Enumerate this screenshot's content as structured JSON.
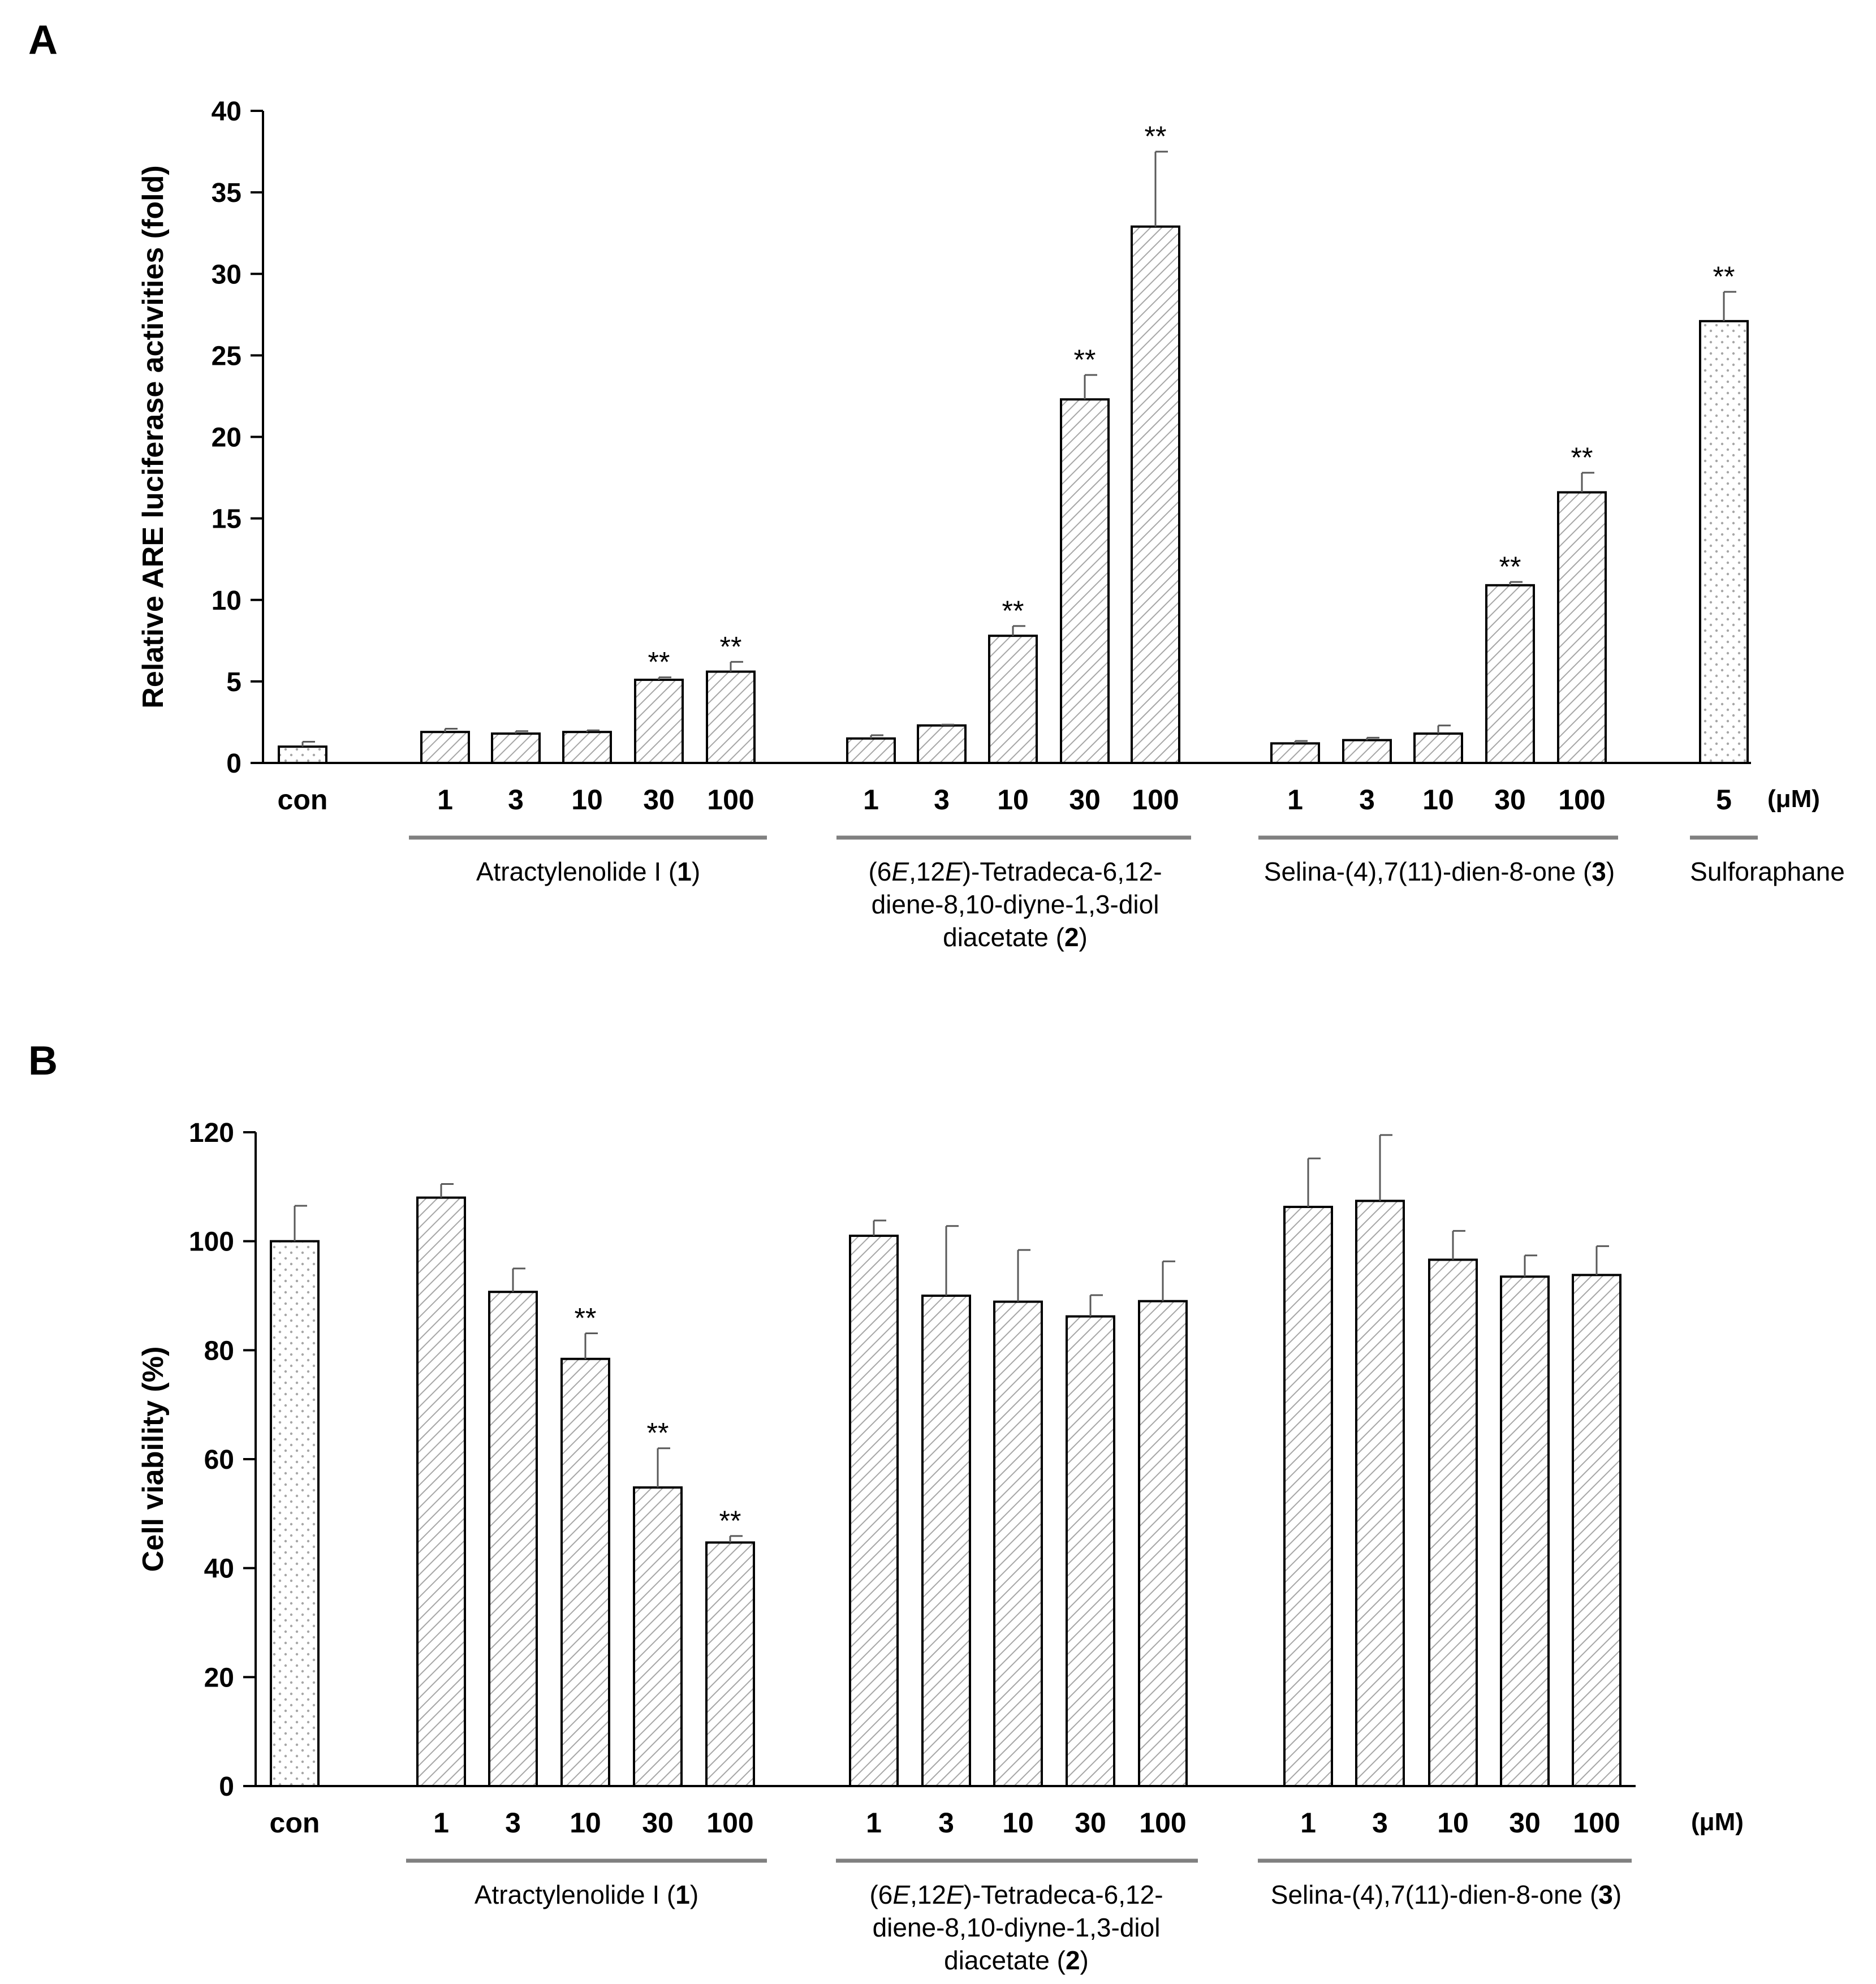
{
  "chart_data": [
    {
      "panel": "A",
      "type": "bar",
      "ylabel": "Relative ARE luciferase activities (fold)",
      "ylim": [
        0,
        40
      ],
      "yticks": [
        0,
        5,
        10,
        15,
        20,
        25,
        30,
        35,
        40
      ],
      "unit": "(μM)",
      "bars": [
        {
          "label": "con",
          "value": 1.0,
          "error": 0.3,
          "pattern": "dots",
          "sig": ""
        },
        {
          "label": "1",
          "value": 1.9,
          "error": 0.2,
          "pattern": "hatch",
          "sig": ""
        },
        {
          "label": "3",
          "value": 1.8,
          "error": 0.15,
          "pattern": "hatch",
          "sig": ""
        },
        {
          "label": "10",
          "value": 1.9,
          "error": 0.1,
          "pattern": "hatch",
          "sig": ""
        },
        {
          "label": "30",
          "value": 5.1,
          "error": 0.15,
          "pattern": "hatch",
          "sig": "**"
        },
        {
          "label": "100",
          "value": 5.6,
          "error": 0.6,
          "pattern": "hatch",
          "sig": "**"
        },
        {
          "label": "1",
          "value": 1.5,
          "error": 0.2,
          "pattern": "hatch",
          "sig": ""
        },
        {
          "label": "3",
          "value": 2.3,
          "error": 0.05,
          "pattern": "hatch",
          "sig": ""
        },
        {
          "label": "10",
          "value": 7.8,
          "error": 0.6,
          "pattern": "hatch",
          "sig": "**"
        },
        {
          "label": "30",
          "value": 22.3,
          "error": 1.5,
          "pattern": "hatch",
          "sig": "**"
        },
        {
          "label": "100",
          "value": 32.9,
          "error": 4.6,
          "pattern": "hatch",
          "sig": "**"
        },
        {
          "label": "1",
          "value": 1.2,
          "error": 0.15,
          "pattern": "hatch",
          "sig": ""
        },
        {
          "label": "3",
          "value": 1.4,
          "error": 0.15,
          "pattern": "hatch",
          "sig": ""
        },
        {
          "label": "10",
          "value": 1.8,
          "error": 0.5,
          "pattern": "hatch",
          "sig": ""
        },
        {
          "label": "30",
          "value": 10.9,
          "error": 0.2,
          "pattern": "hatch",
          "sig": "**"
        },
        {
          "label": "100",
          "value": 16.6,
          "error": 1.2,
          "pattern": "hatch",
          "sig": "**"
        },
        {
          "label": "5",
          "value": 27.1,
          "error": 1.8,
          "pattern": "dots",
          "sig": "**"
        }
      ],
      "groups": [
        {
          "lines": [
            "Atractylenolide I (1)"
          ]
        },
        {
          "lines": [
            "(6E,12E)-Tetradeca-6,12-",
            "diene-8,10-diyne-1,3-diol",
            "diacetate (2)"
          ]
        },
        {
          "lines": [
            "Selina-(4),7(11)-dien-8-one (3)"
          ]
        },
        {
          "lines": [
            "Sulforaphane"
          ]
        }
      ]
    },
    {
      "panel": "B",
      "type": "bar",
      "ylabel": "Cell viability (%)",
      "ylim": [
        0,
        120
      ],
      "yticks": [
        0,
        20,
        40,
        60,
        80,
        100,
        120
      ],
      "unit": "(μM)",
      "bars": [
        {
          "label": "con",
          "value": 100,
          "error": 6.5,
          "pattern": "dots",
          "sig": ""
        },
        {
          "label": "1",
          "value": 108,
          "error": 2.5,
          "pattern": "hatch",
          "sig": ""
        },
        {
          "label": "3",
          "value": 90.7,
          "error": 4.3,
          "pattern": "hatch",
          "sig": ""
        },
        {
          "label": "10",
          "value": 78.4,
          "error": 4.7,
          "pattern": "hatch",
          "sig": "**"
        },
        {
          "label": "30",
          "value": 54.8,
          "error": 7.2,
          "pattern": "hatch",
          "sig": "**"
        },
        {
          "label": "100",
          "value": 44.7,
          "error": 1.2,
          "pattern": "hatch",
          "sig": "**"
        },
        {
          "label": "1",
          "value": 101,
          "error": 2.8,
          "pattern": "hatch",
          "sig": ""
        },
        {
          "label": "3",
          "value": 90,
          "error": 12.8,
          "pattern": "hatch",
          "sig": ""
        },
        {
          "label": "10",
          "value": 88.9,
          "error": 9.5,
          "pattern": "hatch",
          "sig": ""
        },
        {
          "label": "30",
          "value": 86.2,
          "error": 3.9,
          "pattern": "hatch",
          "sig": ""
        },
        {
          "label": "100",
          "value": 89,
          "error": 7.3,
          "pattern": "hatch",
          "sig": ""
        },
        {
          "label": "1",
          "value": 106.3,
          "error": 8.9,
          "pattern": "hatch",
          "sig": ""
        },
        {
          "label": "3",
          "value": 107.4,
          "error": 12.1,
          "pattern": "hatch",
          "sig": ""
        },
        {
          "label": "10",
          "value": 96.6,
          "error": 5.3,
          "pattern": "hatch",
          "sig": ""
        },
        {
          "label": "30",
          "value": 93.5,
          "error": 3.9,
          "pattern": "hatch",
          "sig": ""
        },
        {
          "label": "100",
          "value": 93.8,
          "error": 5.3,
          "pattern": "hatch",
          "sig": ""
        }
      ],
      "groups": [
        {
          "lines": [
            "Atractylenolide I (1)"
          ]
        },
        {
          "lines": [
            "(6E,12E)-Tetradeca-6,12-",
            "diene-8,10-diyne-1,3-diol",
            "diacetate (2)"
          ]
        },
        {
          "lines": [
            "Selina-(4),7(11)-dien-8-one (3)"
          ]
        }
      ]
    }
  ],
  "colors": {
    "axis": "#000000",
    "bracket": "#808080",
    "error_bar": "#595959",
    "hatch": "#a6a6a6",
    "dots": "#a6a6a6"
  }
}
